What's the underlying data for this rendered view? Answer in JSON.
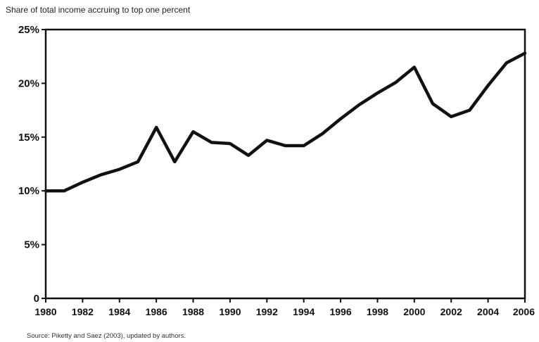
{
  "chart_data": {
    "type": "line",
    "title": "",
    "subtitle": "Share of total income accruing to top one percent",
    "xlabel": "",
    "ylabel": "",
    "source": "Source: Piketty and Saez (2003), updated by authors.",
    "x": [
      1980,
      1981,
      1982,
      1983,
      1984,
      1985,
      1986,
      1987,
      1988,
      1989,
      1990,
      1991,
      1992,
      1993,
      1994,
      1995,
      1996,
      1997,
      1998,
      1999,
      2000,
      2001,
      2002,
      2003,
      2004,
      2005,
      2006
    ],
    "series": [
      {
        "name": "",
        "values": [
          10.0,
          10.0,
          10.8,
          11.5,
          12.0,
          12.7,
          15.9,
          12.7,
          15.5,
          14.5,
          14.4,
          13.3,
          14.7,
          14.2,
          14.2,
          15.3,
          16.7,
          18.0,
          19.1,
          20.1,
          21.5,
          18.1,
          16.9,
          17.5,
          19.8,
          21.9,
          22.8
        ]
      }
    ],
    "xlim": [
      1980,
      2006
    ],
    "ylim": [
      0,
      25
    ],
    "x_ticks": [
      1980,
      1982,
      1984,
      1986,
      1988,
      1990,
      1992,
      1994,
      1996,
      1998,
      2000,
      2002,
      2004,
      2006
    ],
    "x_tick_labels": [
      "1980",
      "1982",
      "1984",
      "1986",
      "1988",
      "1990",
      "1992",
      "1994",
      "1996",
      "1998",
      "2000",
      "2002",
      "2004",
      "2006"
    ],
    "y_ticks": [
      0,
      5,
      10,
      15,
      20,
      25
    ],
    "y_tick_labels": [
      "0",
      "5%",
      "10%",
      "15%",
      "20%",
      "25%"
    ],
    "grid": false,
    "legend": "none",
    "colors": {
      "line": "#111111",
      "axis": "#111111",
      "background": "#ffffff"
    }
  }
}
